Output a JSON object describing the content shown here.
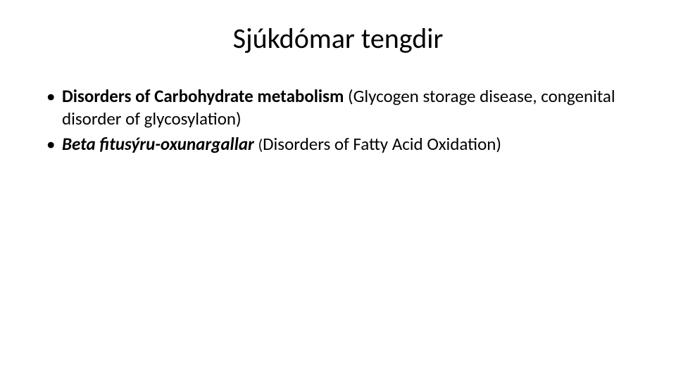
{
  "slide": {
    "background_color": "#ffffff",
    "text_color": "#000000",
    "title": {
      "text": "Sjúkdómar tengdir",
      "fontsize": 40,
      "fontweight": 400,
      "align": "center"
    },
    "bullets": {
      "fontsize": 25,
      "line_height": 1.28,
      "items": [
        {
          "runs": [
            {
              "text": "Disorders of Carbohydrate metabolism ",
              "style": "bold"
            },
            {
              "text": "(Glycogen storage disease, congenital disorder of glycosylation)",
              "style": "normal"
            }
          ]
        },
        {
          "runs": [
            {
              "text": "Beta fitusýru-oxunargallar ",
              "style": "bold-italic"
            },
            {
              "text": "(",
              "style": "normal-small"
            },
            {
              "text": "Disorders of Fatty Acid Oxidation)",
              "style": "normal"
            }
          ]
        }
      ]
    }
  }
}
